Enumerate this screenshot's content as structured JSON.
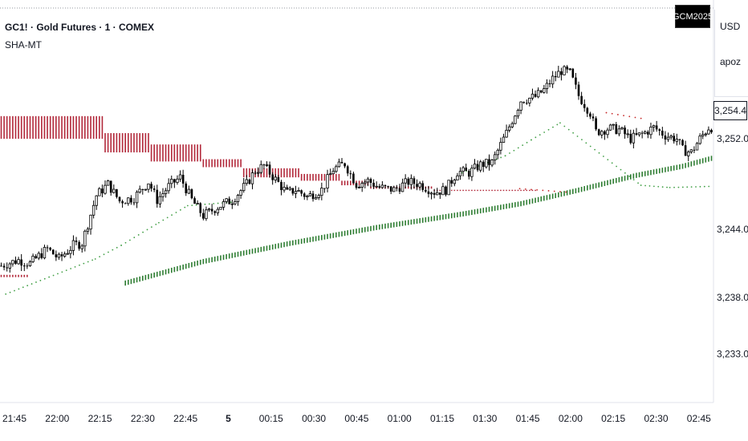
{
  "header": {
    "symbol_title": "GC1! · Gold Futures · 1 · COMEX",
    "indicator_name": "SHA-MT",
    "contract_badge": "GCM2025",
    "currency": "USD",
    "side_label": "apoz"
  },
  "current_price_label": "3,254.4",
  "colors": {
    "candle": "#000000",
    "bearish_band": "#b2283a",
    "bullish_band": "#2e7d32",
    "dots_green": "#43a047",
    "dots_red": "#c62828",
    "axis_text": "#131722"
  },
  "chart_data": {
    "type": "candlestick",
    "title": "GC1! · Gold Futures · 1 · COMEX",
    "xlabel": "",
    "ylabel": "",
    "ylim": [
      3231,
      3260
    ],
    "y_ticks": [
      3233.0,
      3238.0,
      3244.0,
      3252.0
    ],
    "y_tick_labels": [
      "3,233.0",
      "3,238.0",
      "3,244.0",
      "3,252.0"
    ],
    "x_ticks": [
      "21:45",
      "22:00",
      "22:15",
      "22:30",
      "22:45",
      "5",
      "00:15",
      "00:30",
      "00:45",
      "01:00",
      "01:15",
      "01:30",
      "01:45",
      "02:00",
      "02:15",
      "02:30",
      "02:45"
    ],
    "last_price": 3254.4,
    "close_path": [
      [
        0,
        3240.8
      ],
      [
        6,
        3241.3
      ],
      [
        10,
        3241.0
      ],
      [
        16,
        3242.3
      ],
      [
        20,
        3241.4
      ],
      [
        25,
        3242.6
      ],
      [
        28,
        3242.8
      ],
      [
        33,
        3247.0
      ],
      [
        37,
        3248.0
      ],
      [
        41,
        3246.5
      ],
      [
        46,
        3246.8
      ],
      [
        51,
        3248.2
      ],
      [
        54,
        3246.6
      ],
      [
        58,
        3247.8
      ],
      [
        62,
        3248.6
      ],
      [
        66,
        3246.6
      ],
      [
        70,
        3245.2
      ],
      [
        75,
        3246.0
      ],
      [
        80,
        3246.6
      ],
      [
        85,
        3248.0
      ],
      [
        88,
        3249.2
      ],
      [
        91,
        3249.6
      ],
      [
        95,
        3248.4
      ],
      [
        99,
        3247.2
      ],
      [
        102,
        3247.5
      ],
      [
        106,
        3246.9
      ],
      [
        111,
        3247.5
      ],
      [
        115,
        3249.3
      ],
      [
        119,
        3249.8
      ],
      [
        123,
        3248.0
      ],
      [
        127,
        3248.3
      ],
      [
        131,
        3247.7
      ],
      [
        136,
        3247.5
      ],
      [
        141,
        3248.2
      ],
      [
        145,
        3248.0
      ],
      [
        150,
        3247.3
      ],
      [
        154,
        3247.5
      ],
      [
        158,
        3249.1
      ],
      [
        162,
        3249.0
      ],
      [
        166,
        3249.7
      ],
      [
        170,
        3249.9
      ],
      [
        175,
        3252.5
      ],
      [
        180,
        3255.4
      ],
      [
        185,
        3255.7
      ],
      [
        188,
        3256.3
      ],
      [
        191,
        3257.3
      ],
      [
        194,
        3258.0
      ],
      [
        197,
        3257.8
      ],
      [
        200,
        3255.8
      ],
      [
        204,
        3254.3
      ],
      [
        206,
        3252.6
      ],
      [
        210,
        3252.9
      ],
      [
        214,
        3252.8
      ],
      [
        218,
        3252.0
      ],
      [
        222,
        3252.4
      ],
      [
        226,
        3253.0
      ],
      [
        230,
        3252.3
      ],
      [
        234,
        3252.0
      ],
      [
        236,
        3251.0
      ],
      [
        239,
        3250.8
      ],
      [
        242,
        3252.0
      ],
      [
        245,
        3253.0
      ]
    ],
    "series": [
      {
        "name": "",
        "style": "red-band",
        "segments": [
          [
            0,
            36,
            3254.0,
            3252.0
          ],
          [
            36,
            52,
            3252.5,
            3250.8
          ],
          [
            52,
            70,
            3251.5,
            3250.0
          ],
          [
            70,
            84,
            3250.2,
            3249.5
          ],
          [
            84,
            104,
            3249.4,
            3248.6
          ],
          [
            104,
            118,
            3248.9,
            3248.3
          ],
          [
            118,
            128,
            3248.3,
            3247.9
          ],
          [
            128,
            150,
            3247.8,
            3247.6
          ],
          [
            150,
            186,
            3247.5,
            3247.4
          ],
          [
            0,
            10,
            3240.0,
            3239.8
          ]
        ]
      },
      {
        "name": "",
        "style": "green-band",
        "points": [
          [
            43,
            3239.3
          ],
          [
            70,
            3241.2
          ],
          [
            100,
            3242.8
          ],
          [
            130,
            3244.2
          ],
          [
            160,
            3245.4
          ],
          [
            180,
            3246.3
          ],
          [
            200,
            3247.5
          ],
          [
            220,
            3248.8
          ],
          [
            236,
            3249.6
          ],
          [
            246,
            3250.3
          ]
        ]
      },
      {
        "name": "",
        "style": "green-dots",
        "points": [
          [
            2,
            3238.3
          ],
          [
            33,
            3241.4
          ],
          [
            42,
            3242.6
          ],
          [
            55,
            3244.6
          ],
          [
            65,
            3246.1
          ],
          [
            80,
            3246.4
          ],
          [
            160,
            3249.0
          ],
          [
            175,
            3250.5
          ],
          [
            184,
            3251.9
          ],
          [
            194,
            3253.4
          ],
          [
            222,
            3247.9
          ],
          [
            232,
            3247.7
          ],
          [
            246,
            3247.8
          ]
        ]
      },
      {
        "name": "",
        "style": "red-dots",
        "points": [
          [
            180,
            3247.6
          ],
          [
            196,
            3247.3
          ],
          [
            210,
            3254.3
          ],
          [
            222,
            3253.8
          ],
          [
            240,
            3253.0
          ]
        ]
      }
    ]
  }
}
